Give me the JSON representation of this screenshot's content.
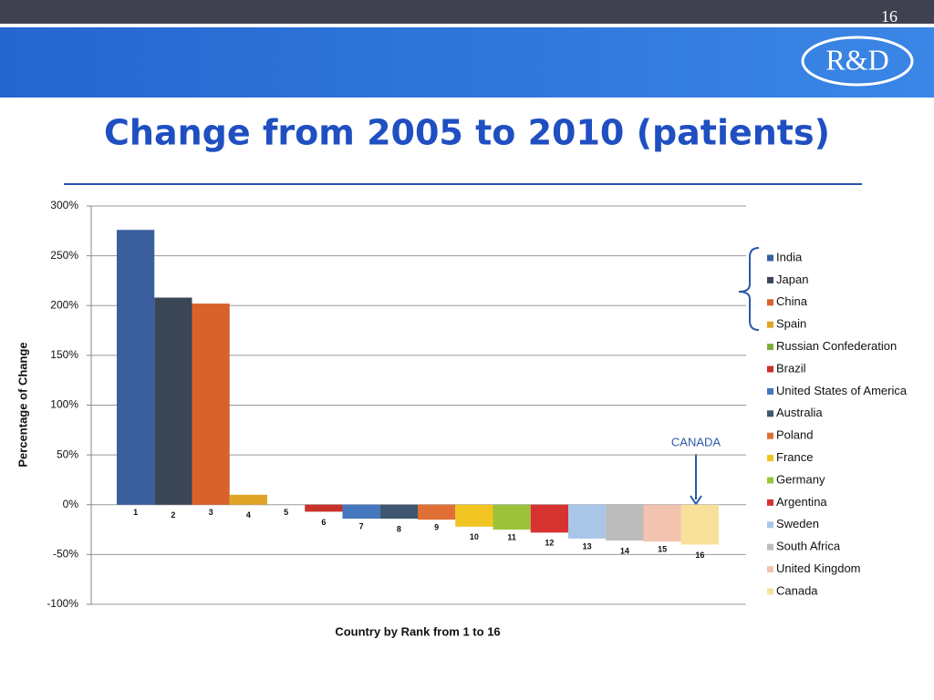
{
  "slide_number": "16",
  "logo": "R&D",
  "chart_data": {
    "type": "bar",
    "title": "Change from 2005 to 2010 (patients)",
    "y_label": "Percentage of Change",
    "x_label": "Country by Rank from 1 to 16",
    "annotation": "CANADA",
    "categories": [
      "1",
      "2",
      "3",
      "4",
      "5",
      "6",
      "7",
      "8",
      "9",
      "10",
      "11",
      "12",
      "13",
      "14",
      "15",
      "16"
    ],
    "values": [
      276,
      208,
      202,
      10,
      0,
      -7,
      -14,
      -14,
      -15,
      -22,
      -25,
      -28,
      -34,
      -36,
      -37,
      -40
    ],
    "legend": [
      "India",
      "Japan",
      "China",
      "Spain",
      "Russian Confederation",
      "Brazil",
      "United States of America",
      "Australia",
      "Poland",
      "France",
      "Germany",
      "Argentina",
      "Sweden",
      "South Africa",
      "United Kingdom",
      "Canada"
    ],
    "colors": [
      "#3b5f9e",
      "#3a4556",
      "#d9622b",
      "#e0a526",
      "#7fae3a",
      "#c8322a",
      "#4477bb",
      "#3f5570",
      "#e07035",
      "#f2c421",
      "#9cc33a",
      "#d63330",
      "#a9c6e8",
      "#bcbcbc",
      "#f2c3ae",
      "#f7e09a"
    ],
    "ylim": [
      -100,
      300
    ],
    "yticks": [
      {
        "value": -100,
        "label": "-100%"
      },
      {
        "value": -50,
        "label": "-50%"
      },
      {
        "value": 0,
        "label": "0%"
      },
      {
        "value": 50,
        "label": "50%"
      },
      {
        "value": 100,
        "label": "100%"
      },
      {
        "value": 150,
        "label": "150%"
      },
      {
        "value": 200,
        "label": "200%"
      },
      {
        "value": 250,
        "label": "250%"
      },
      {
        "value": 300,
        "label": "300%"
      }
    ],
    "grid": true
  }
}
